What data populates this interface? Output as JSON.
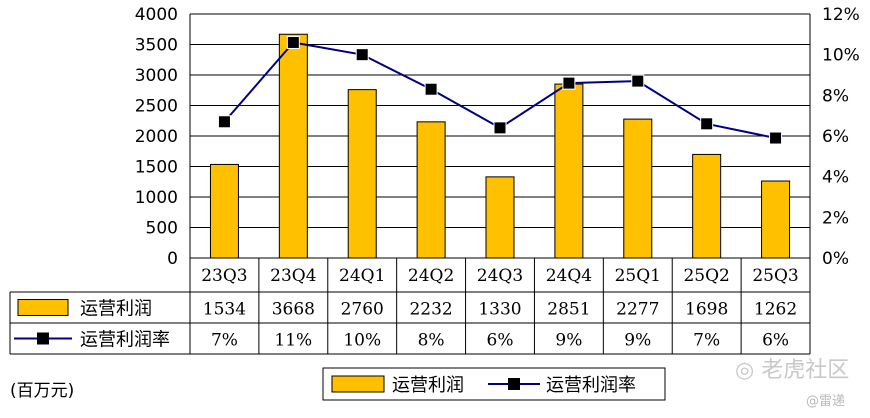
{
  "chart_data": {
    "type": "bar",
    "categories": [
      "23Q3",
      "23Q4",
      "24Q1",
      "24Q2",
      "24Q3",
      "24Q4",
      "25Q1",
      "25Q2",
      "25Q3"
    ],
    "series": [
      {
        "name": "运营利润",
        "axis": "left",
        "type": "bar",
        "color": "#FFC000",
        "values": [
          1534,
          3668,
          2760,
          2232,
          1330,
          2851,
          2277,
          1698,
          1262
        ]
      },
      {
        "name": "运营利润率",
        "axis": "right",
        "type": "line",
        "color": "#000080",
        "values": [
          6.7,
          10.6,
          10.0,
          8.3,
          6.4,
          8.6,
          8.7,
          6.6,
          5.9
        ]
      }
    ],
    "table_rows": [
      {
        "label": "运营利润",
        "cells": [
          "1534",
          "3668",
          "2760",
          "2232",
          "1330",
          "2851",
          "2277",
          "1698",
          "1262"
        ]
      },
      {
        "label": "运营利润率",
        "cells": [
          "7%",
          "11%",
          "10%",
          "8%",
          "6%",
          "9%",
          "9%",
          "7%",
          "6%"
        ]
      }
    ],
    "y_left": {
      "min": 0,
      "max": 4000,
      "step": 500,
      "ticks": [
        "0",
        "500",
        "1000",
        "1500",
        "2000",
        "2500",
        "3000",
        "3500",
        "4000"
      ]
    },
    "y_right": {
      "min": 0,
      "max": 12,
      "step": 2,
      "ticks": [
        "0%",
        "2%",
        "4%",
        "6%",
        "8%",
        "10%",
        "12%"
      ]
    },
    "grid": true,
    "legend": {
      "position": "bottom-center",
      "items": [
        "运营利润",
        "运营利润率"
      ]
    },
    "unit": "(百万元)"
  },
  "watermark": {
    "text": "老虎社区",
    "sub": "@雷递"
  }
}
